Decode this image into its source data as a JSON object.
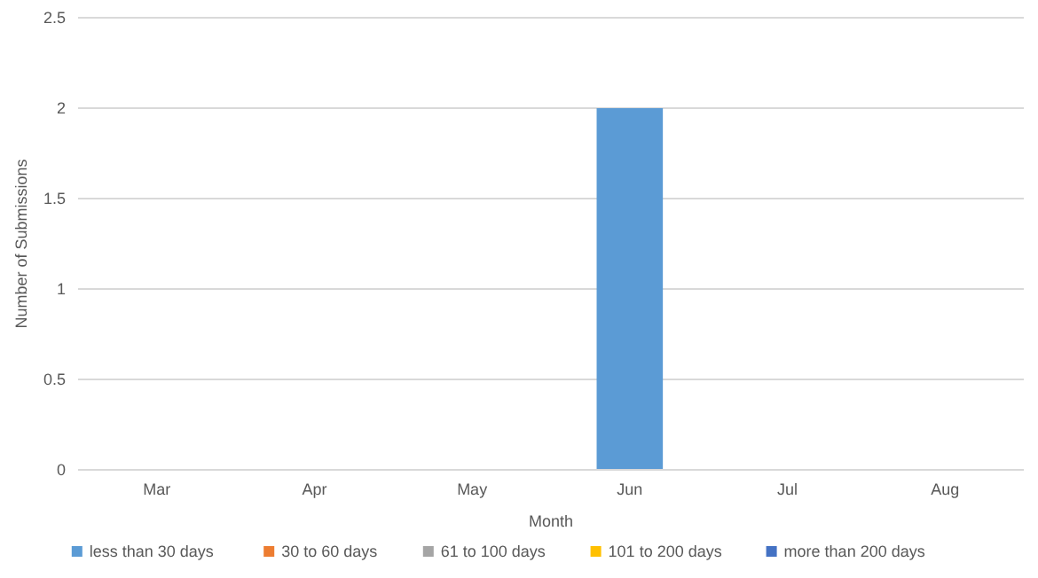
{
  "chart_data": {
    "type": "bar",
    "stacked": true,
    "xlabel": "Month",
    "ylabel": "Number of Submissions",
    "categories": [
      "Mar",
      "Apr",
      "May",
      "Jun",
      "Jul",
      "Aug"
    ],
    "series": [
      {
        "name": "less than 30 days",
        "color": "#5b9bd5",
        "values": [
          0,
          0,
          0,
          2,
          0,
          0
        ]
      },
      {
        "name": "30 to 60 days",
        "color": "#ed7d31",
        "values": [
          0,
          0,
          0,
          0,
          0,
          0
        ]
      },
      {
        "name": "61 to 100 days",
        "color": "#a5a5a5",
        "values": [
          0,
          0,
          0,
          0,
          0,
          0
        ]
      },
      {
        "name": "101 to 200 days",
        "color": "#ffc000",
        "values": [
          0,
          0,
          0,
          0,
          0,
          0
        ]
      },
      {
        "name": "more than 200 days",
        "color": "#4472c4",
        "values": [
          0,
          0,
          0,
          0,
          0,
          0
        ]
      }
    ],
    "ylim": [
      0,
      2.5
    ],
    "yticks": [
      0,
      0.5,
      1,
      1.5,
      2,
      2.5
    ],
    "grid": "y",
    "legend": "bottom"
  }
}
